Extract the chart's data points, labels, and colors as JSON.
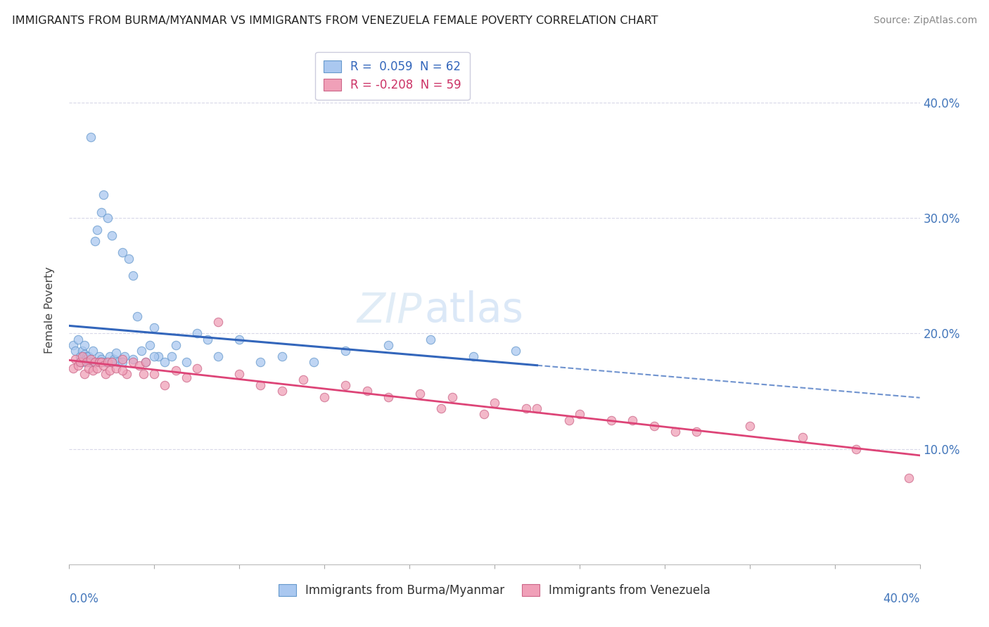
{
  "title": "IMMIGRANTS FROM BURMA/MYANMAR VS IMMIGRANTS FROM VENEZUELA FEMALE POVERTY CORRELATION CHART",
  "source": "Source: ZipAtlas.com",
  "ylabel": "Female Poverty",
  "xlim": [
    0.0,
    0.4
  ],
  "ylim": [
    0.0,
    0.44
  ],
  "legend_r1": "R =  0.059  N = 62",
  "legend_r2": "R = -0.208  N = 59",
  "color_blue": "#aac8f0",
  "color_blue_edge": "#6699cc",
  "color_pink": "#f0a0b8",
  "color_pink_edge": "#cc6688",
  "line_color_blue": "#3366bb",
  "line_color_pink": "#dd4477",
  "watermark": "ZIPatlas",
  "background_color": "#ffffff",
  "grid_color": "#d8d8e8",
  "blue_x": [
    0.002,
    0.003,
    0.004,
    0.005,
    0.005,
    0.006,
    0.006,
    0.007,
    0.007,
    0.008,
    0.008,
    0.009,
    0.009,
    0.01,
    0.01,
    0.011,
    0.012,
    0.012,
    0.013,
    0.013,
    0.014,
    0.015,
    0.015,
    0.016,
    0.017,
    0.018,
    0.019,
    0.02,
    0.021,
    0.022,
    0.023,
    0.025,
    0.026,
    0.028,
    0.03,
    0.032,
    0.034,
    0.036,
    0.038,
    0.04,
    0.042,
    0.045,
    0.048,
    0.05,
    0.055,
    0.06,
    0.065,
    0.07,
    0.08,
    0.09,
    0.1,
    0.115,
    0.13,
    0.15,
    0.17,
    0.19,
    0.21,
    0.015,
    0.02,
    0.025,
    0.03,
    0.04
  ],
  "blue_y": [
    0.19,
    0.185,
    0.195,
    0.18,
    0.175,
    0.185,
    0.175,
    0.19,
    0.182,
    0.18,
    0.178,
    0.175,
    0.18,
    0.37,
    0.175,
    0.185,
    0.28,
    0.175,
    0.29,
    0.175,
    0.18,
    0.305,
    0.178,
    0.32,
    0.175,
    0.3,
    0.18,
    0.285,
    0.178,
    0.183,
    0.175,
    0.27,
    0.18,
    0.265,
    0.25,
    0.215,
    0.185,
    0.175,
    0.19,
    0.205,
    0.18,
    0.175,
    0.18,
    0.19,
    0.175,
    0.2,
    0.195,
    0.18,
    0.195,
    0.175,
    0.18,
    0.175,
    0.185,
    0.19,
    0.195,
    0.18,
    0.185,
    0.175,
    0.175,
    0.175,
    0.178,
    0.18
  ],
  "pink_x": [
    0.002,
    0.003,
    0.004,
    0.005,
    0.006,
    0.007,
    0.008,
    0.009,
    0.01,
    0.011,
    0.012,
    0.013,
    0.014,
    0.015,
    0.016,
    0.017,
    0.018,
    0.019,
    0.02,
    0.022,
    0.025,
    0.027,
    0.03,
    0.033,
    0.036,
    0.04,
    0.045,
    0.05,
    0.055,
    0.06,
    0.07,
    0.08,
    0.09,
    0.1,
    0.11,
    0.12,
    0.13,
    0.14,
    0.15,
    0.165,
    0.18,
    0.2,
    0.22,
    0.24,
    0.265,
    0.285,
    0.175,
    0.195,
    0.215,
    0.235,
    0.255,
    0.275,
    0.295,
    0.32,
    0.345,
    0.37,
    0.395,
    0.025,
    0.035
  ],
  "pink_y": [
    0.17,
    0.178,
    0.172,
    0.175,
    0.18,
    0.165,
    0.175,
    0.17,
    0.178,
    0.168,
    0.175,
    0.17,
    0.175,
    0.175,
    0.172,
    0.165,
    0.175,
    0.168,
    0.175,
    0.17,
    0.178,
    0.165,
    0.175,
    0.172,
    0.175,
    0.165,
    0.155,
    0.168,
    0.162,
    0.17,
    0.21,
    0.165,
    0.155,
    0.15,
    0.16,
    0.145,
    0.155,
    0.15,
    0.145,
    0.148,
    0.145,
    0.14,
    0.135,
    0.13,
    0.125,
    0.115,
    0.135,
    0.13,
    0.135,
    0.125,
    0.125,
    0.12,
    0.115,
    0.12,
    0.11,
    0.1,
    0.075,
    0.168,
    0.165
  ]
}
